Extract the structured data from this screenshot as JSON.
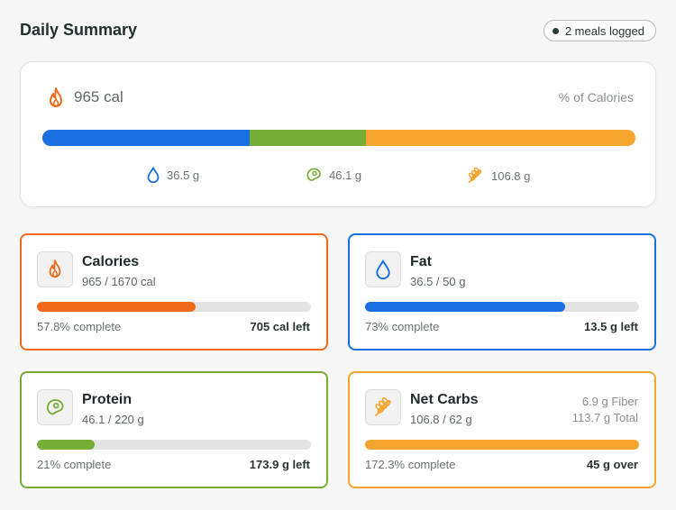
{
  "header": {
    "title": "Daily Summary",
    "meals_badge": "2 meals logged"
  },
  "overview": {
    "calories": "965 cal",
    "pct_label": "% of Calories",
    "split": {
      "fat": 0.35,
      "protein": 0.195,
      "carbs": 0.455
    },
    "macros": {
      "fat": "36.5 g",
      "protein": "46.1 g",
      "carbs": "106.8 g"
    }
  },
  "cards": {
    "calories": {
      "name": "Calories",
      "sub": "965 / 1670 cal",
      "progress": 0.578,
      "pct": "57.8% complete",
      "left": "705 cal left"
    },
    "fat": {
      "name": "Fat",
      "sub": "36.5 / 50 g",
      "progress": 0.73,
      "pct": "73% complete",
      "left": "13.5 g left"
    },
    "protein": {
      "name": "Protein",
      "sub": "46.1 / 220 g",
      "progress": 0.21,
      "pct": "21% complete",
      "left": "173.9 g left"
    },
    "carbs": {
      "name": "Net Carbs",
      "sub": "106.8 / 62 g",
      "progress": 1.0,
      "pct": "172.3% complete",
      "left": "45 g over",
      "fiber": "6.9 g Fiber",
      "total": "113.7 g Total"
    }
  },
  "colors": {
    "calories": "#f06a1a",
    "fat": "#1a6fe0",
    "protein": "#76ad37",
    "carbs": "#f4a52e"
  },
  "icons": {
    "calories": "flame-icon",
    "fat": "drop-icon",
    "protein": "steak-icon",
    "carbs": "wheat-icon"
  }
}
